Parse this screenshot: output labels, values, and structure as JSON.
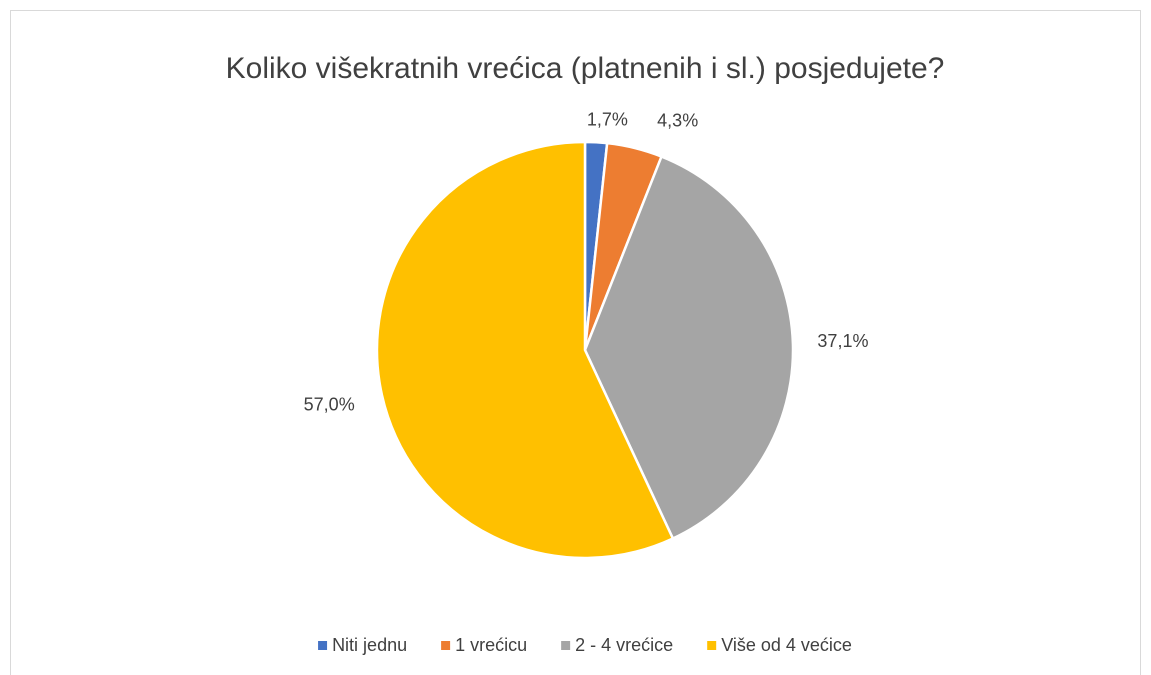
{
  "chart_data": {
    "type": "pie",
    "title": "Koliko višekratnih vrećica (platnenih i sl.) posjedujete?",
    "categories": [
      "Niti jednu",
      "1 vrećicu",
      "2 - 4 vrećice",
      "Više od 4 većice"
    ],
    "values": [
      1.7,
      4.3,
      37.1,
      57.0
    ],
    "value_labels": [
      "1,7%",
      "4,3%",
      "37,1%",
      "57,0%"
    ],
    "colors": [
      "#4472c4",
      "#ed7d31",
      "#a5a5a5",
      "#ffc000"
    ],
    "legend": "bottom"
  }
}
